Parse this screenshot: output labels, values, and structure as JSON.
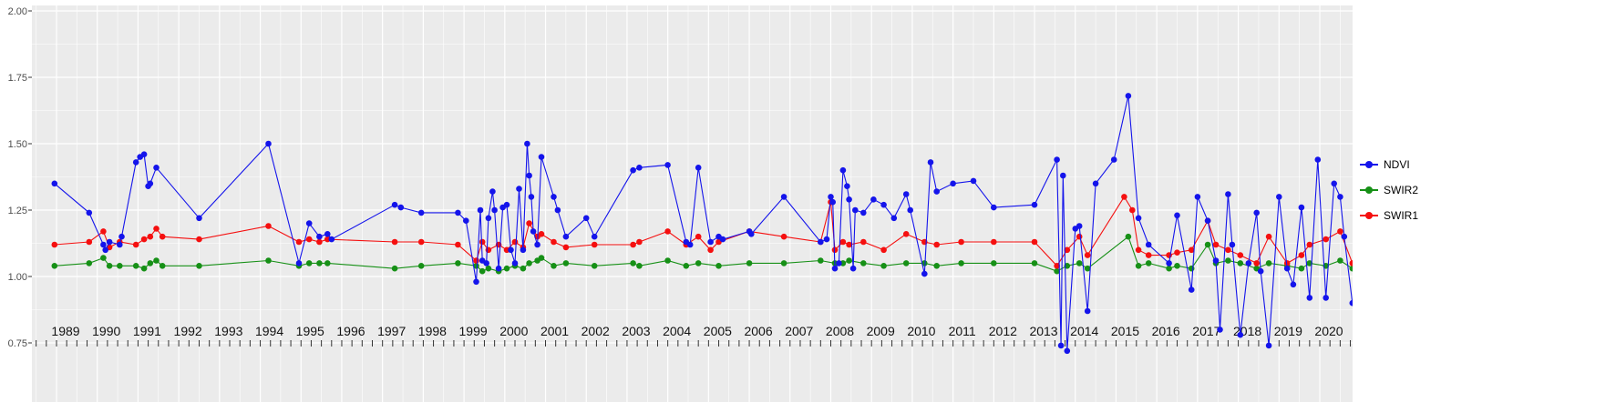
{
  "chart_data": {
    "type": "line",
    "title": "",
    "xlabel": "",
    "ylabel": "",
    "xlim": [
      1988.4,
      2020.95
    ],
    "ylim": [
      0.75,
      2.0
    ],
    "y_ticks": [
      0.75,
      1.0,
      1.25,
      1.5,
      1.75,
      2.0
    ],
    "y_tick_labels": [
      "0.75",
      "1.00",
      "1.25",
      "1.50",
      "1.75",
      "2.00"
    ],
    "x_ticks": [
      1989,
      1990,
      1991,
      1992,
      1993,
      1994,
      1995,
      1996,
      1997,
      1998,
      1999,
      2000,
      2001,
      2002,
      2003,
      2004,
      2005,
      2006,
      2007,
      2008,
      2009,
      2010,
      2011,
      2012,
      2013,
      2014,
      2015,
      2016,
      2017,
      2018,
      2019,
      2020
    ],
    "grid": "white major and minor gridlines on gray panel",
    "legend_position": "right",
    "series": [
      {
        "name": "SWIR2",
        "color": "#169016",
        "points": [
          [
            1988.95,
            1.04
          ],
          [
            1989.8,
            1.05
          ],
          [
            1990.15,
            1.07
          ],
          [
            1990.3,
            1.04
          ],
          [
            1990.55,
            1.04
          ],
          [
            1990.95,
            1.04
          ],
          [
            1991.15,
            1.03
          ],
          [
            1991.3,
            1.05
          ],
          [
            1991.45,
            1.06
          ],
          [
            1991.6,
            1.04
          ],
          [
            1992.5,
            1.04
          ],
          [
            1994.2,
            1.06
          ],
          [
            1994.95,
            1.04
          ],
          [
            1995.2,
            1.05
          ],
          [
            1995.45,
            1.05
          ],
          [
            1995.65,
            1.05
          ],
          [
            1997.3,
            1.03
          ],
          [
            1997.95,
            1.04
          ],
          [
            1998.85,
            1.05
          ],
          [
            1999.3,
            1.04
          ],
          [
            1999.45,
            1.02
          ],
          [
            1999.6,
            1.03
          ],
          [
            1999.85,
            1.02
          ],
          [
            2000.05,
            1.03
          ],
          [
            2000.25,
            1.04
          ],
          [
            2000.45,
            1.03
          ],
          [
            2000.6,
            1.05
          ],
          [
            2000.8,
            1.06
          ],
          [
            2000.9,
            1.07
          ],
          [
            2001.2,
            1.04
          ],
          [
            2001.5,
            1.05
          ],
          [
            2002.2,
            1.04
          ],
          [
            2003.15,
            1.05
          ],
          [
            2003.3,
            1.04
          ],
          [
            2004.0,
            1.06
          ],
          [
            2004.45,
            1.04
          ],
          [
            2004.75,
            1.05
          ],
          [
            2005.25,
            1.04
          ],
          [
            2006.0,
            1.05
          ],
          [
            2006.85,
            1.05
          ],
          [
            2007.75,
            1.06
          ],
          [
            2008.1,
            1.05
          ],
          [
            2008.3,
            1.05
          ],
          [
            2008.45,
            1.06
          ],
          [
            2008.8,
            1.05
          ],
          [
            2009.3,
            1.04
          ],
          [
            2009.85,
            1.05
          ],
          [
            2010.3,
            1.05
          ],
          [
            2010.6,
            1.04
          ],
          [
            2011.2,
            1.05
          ],
          [
            2012.0,
            1.05
          ],
          [
            2013.0,
            1.05
          ],
          [
            2013.55,
            1.02
          ],
          [
            2013.8,
            1.04
          ],
          [
            2014.1,
            1.05
          ],
          [
            2014.3,
            1.03
          ],
          [
            2015.3,
            1.15
          ],
          [
            2015.55,
            1.04
          ],
          [
            2015.8,
            1.05
          ],
          [
            2016.3,
            1.03
          ],
          [
            2016.5,
            1.04
          ],
          [
            2016.85,
            1.03
          ],
          [
            2017.25,
            1.12
          ],
          [
            2017.45,
            1.05
          ],
          [
            2017.75,
            1.06
          ],
          [
            2018.05,
            1.05
          ],
          [
            2018.45,
            1.03
          ],
          [
            2018.75,
            1.05
          ],
          [
            2019.2,
            1.04
          ],
          [
            2019.55,
            1.03
          ],
          [
            2019.75,
            1.05
          ],
          [
            2020.15,
            1.04
          ],
          [
            2020.5,
            1.06
          ],
          [
            2020.8,
            1.03
          ]
        ]
      },
      {
        "name": "SWIR1",
        "color": "#F50F0F",
        "points": [
          [
            1988.95,
            1.12
          ],
          [
            1989.8,
            1.13
          ],
          [
            1990.15,
            1.17
          ],
          [
            1990.3,
            1.11
          ],
          [
            1990.55,
            1.13
          ],
          [
            1990.95,
            1.12
          ],
          [
            1991.15,
            1.14
          ],
          [
            1991.3,
            1.15
          ],
          [
            1991.45,
            1.18
          ],
          [
            1991.6,
            1.15
          ],
          [
            1992.5,
            1.14
          ],
          [
            1994.2,
            1.19
          ],
          [
            1994.95,
            1.13
          ],
          [
            1995.2,
            1.14
          ],
          [
            1995.45,
            1.13
          ],
          [
            1995.65,
            1.14
          ],
          [
            1997.3,
            1.13
          ],
          [
            1997.95,
            1.13
          ],
          [
            1998.85,
            1.12
          ],
          [
            1999.3,
            1.06
          ],
          [
            1999.45,
            1.13
          ],
          [
            1999.6,
            1.1
          ],
          [
            1999.85,
            1.12
          ],
          [
            2000.05,
            1.1
          ],
          [
            2000.25,
            1.13
          ],
          [
            2000.45,
            1.11
          ],
          [
            2000.6,
            1.2
          ],
          [
            2000.8,
            1.15
          ],
          [
            2000.9,
            1.16
          ],
          [
            2001.2,
            1.13
          ],
          [
            2001.5,
            1.11
          ],
          [
            2002.2,
            1.12
          ],
          [
            2003.15,
            1.12
          ],
          [
            2003.3,
            1.13
          ],
          [
            2004.0,
            1.17
          ],
          [
            2004.45,
            1.12
          ],
          [
            2004.75,
            1.15
          ],
          [
            2005.05,
            1.1
          ],
          [
            2005.25,
            1.13
          ],
          [
            2006.0,
            1.17
          ],
          [
            2006.85,
            1.15
          ],
          [
            2007.75,
            1.13
          ],
          [
            2008.0,
            1.28
          ],
          [
            2008.1,
            1.1
          ],
          [
            2008.3,
            1.13
          ],
          [
            2008.45,
            1.12
          ],
          [
            2008.8,
            1.13
          ],
          [
            2009.3,
            1.1
          ],
          [
            2009.85,
            1.16
          ],
          [
            2010.3,
            1.13
          ],
          [
            2010.6,
            1.12
          ],
          [
            2011.2,
            1.13
          ],
          [
            2012.0,
            1.13
          ],
          [
            2013.0,
            1.13
          ],
          [
            2013.55,
            1.04
          ],
          [
            2013.8,
            1.1
          ],
          [
            2014.1,
            1.15
          ],
          [
            2014.3,
            1.08
          ],
          [
            2015.2,
            1.3
          ],
          [
            2015.4,
            1.25
          ],
          [
            2015.55,
            1.1
          ],
          [
            2015.8,
            1.08
          ],
          [
            2016.3,
            1.08
          ],
          [
            2016.5,
            1.09
          ],
          [
            2016.85,
            1.1
          ],
          [
            2017.25,
            1.21
          ],
          [
            2017.45,
            1.12
          ],
          [
            2017.75,
            1.1
          ],
          [
            2018.05,
            1.08
          ],
          [
            2018.45,
            1.05
          ],
          [
            2018.75,
            1.15
          ],
          [
            2019.2,
            1.05
          ],
          [
            2019.55,
            1.08
          ],
          [
            2019.75,
            1.12
          ],
          [
            2020.15,
            1.14
          ],
          [
            2020.5,
            1.17
          ],
          [
            2020.8,
            1.05
          ]
        ]
      },
      {
        "name": "NDVI",
        "color": "#1414EB",
        "points": [
          [
            1988.95,
            1.35
          ],
          [
            1989.8,
            1.24
          ],
          [
            1990.15,
            1.12
          ],
          [
            1990.2,
            1.1
          ],
          [
            1990.3,
            1.13
          ],
          [
            1990.55,
            1.12
          ],
          [
            1990.6,
            1.15
          ],
          [
            1990.95,
            1.43
          ],
          [
            1991.05,
            1.45
          ],
          [
            1991.15,
            1.46
          ],
          [
            1991.25,
            1.34
          ],
          [
            1991.3,
            1.35
          ],
          [
            1991.45,
            1.41
          ],
          [
            1992.5,
            1.22
          ],
          [
            1994.2,
            1.5
          ],
          [
            1994.95,
            1.05
          ],
          [
            1995.2,
            1.2
          ],
          [
            1995.45,
            1.15
          ],
          [
            1995.65,
            1.16
          ],
          [
            1995.75,
            1.14
          ],
          [
            1997.3,
            1.27
          ],
          [
            1997.45,
            1.26
          ],
          [
            1997.95,
            1.24
          ],
          [
            1998.85,
            1.24
          ],
          [
            1999.05,
            1.21
          ],
          [
            1999.3,
            0.98
          ],
          [
            1999.4,
            1.25
          ],
          [
            1999.45,
            1.06
          ],
          [
            1999.55,
            1.05
          ],
          [
            1999.6,
            1.22
          ],
          [
            1999.7,
            1.32
          ],
          [
            1999.75,
            1.25
          ],
          [
            1999.85,
            1.03
          ],
          [
            1999.95,
            1.26
          ],
          [
            2000.05,
            1.27
          ],
          [
            2000.15,
            1.1
          ],
          [
            2000.25,
            1.05
          ],
          [
            2000.35,
            1.33
          ],
          [
            2000.45,
            1.1
          ],
          [
            2000.55,
            1.5
          ],
          [
            2000.6,
            1.38
          ],
          [
            2000.65,
            1.3
          ],
          [
            2000.7,
            1.17
          ],
          [
            2000.8,
            1.12
          ],
          [
            2000.9,
            1.45
          ],
          [
            2001.2,
            1.3
          ],
          [
            2001.3,
            1.25
          ],
          [
            2001.5,
            1.15
          ],
          [
            2002.0,
            1.22
          ],
          [
            2002.2,
            1.15
          ],
          [
            2003.15,
            1.4
          ],
          [
            2003.3,
            1.41
          ],
          [
            2004.0,
            1.42
          ],
          [
            2004.45,
            1.13
          ],
          [
            2004.55,
            1.12
          ],
          [
            2004.75,
            1.41
          ],
          [
            2005.05,
            1.13
          ],
          [
            2005.25,
            1.15
          ],
          [
            2005.35,
            1.14
          ],
          [
            2006.0,
            1.17
          ],
          [
            2006.05,
            1.16
          ],
          [
            2006.85,
            1.3
          ],
          [
            2007.75,
            1.13
          ],
          [
            2007.9,
            1.14
          ],
          [
            2008.0,
            1.3
          ],
          [
            2008.05,
            1.28
          ],
          [
            2008.1,
            1.03
          ],
          [
            2008.2,
            1.05
          ],
          [
            2008.3,
            1.4
          ],
          [
            2008.4,
            1.34
          ],
          [
            2008.45,
            1.29
          ],
          [
            2008.55,
            1.03
          ],
          [
            2008.6,
            1.25
          ],
          [
            2008.8,
            1.24
          ],
          [
            2009.05,
            1.29
          ],
          [
            2009.3,
            1.27
          ],
          [
            2009.55,
            1.22
          ],
          [
            2009.85,
            1.31
          ],
          [
            2009.95,
            1.25
          ],
          [
            2010.3,
            1.01
          ],
          [
            2010.45,
            1.43
          ],
          [
            2010.6,
            1.32
          ],
          [
            2011.0,
            1.35
          ],
          [
            2011.5,
            1.36
          ],
          [
            2012.0,
            1.26
          ],
          [
            2013.0,
            1.27
          ],
          [
            2013.55,
            1.44
          ],
          [
            2013.65,
            0.74
          ],
          [
            2013.7,
            1.38
          ],
          [
            2013.8,
            0.72
          ],
          [
            2014.0,
            1.18
          ],
          [
            2014.1,
            1.19
          ],
          [
            2014.3,
            0.87
          ],
          [
            2014.5,
            1.35
          ],
          [
            2014.95,
            1.44
          ],
          [
            2015.3,
            1.68
          ],
          [
            2015.55,
            1.22
          ],
          [
            2015.8,
            1.12
          ],
          [
            2016.3,
            1.05
          ],
          [
            2016.5,
            1.23
          ],
          [
            2016.85,
            0.95
          ],
          [
            2017.0,
            1.3
          ],
          [
            2017.25,
            1.21
          ],
          [
            2017.45,
            1.06
          ],
          [
            2017.55,
            0.8
          ],
          [
            2017.75,
            1.31
          ],
          [
            2017.85,
            1.12
          ],
          [
            2018.05,
            0.78
          ],
          [
            2018.25,
            1.05
          ],
          [
            2018.45,
            1.24
          ],
          [
            2018.55,
            1.02
          ],
          [
            2018.75,
            0.74
          ],
          [
            2019.0,
            1.3
          ],
          [
            2019.2,
            1.03
          ],
          [
            2019.35,
            0.97
          ],
          [
            2019.55,
            1.26
          ],
          [
            2019.75,
            0.92
          ],
          [
            2019.95,
            1.44
          ],
          [
            2020.15,
            0.92
          ],
          [
            2020.35,
            1.35
          ],
          [
            2020.5,
            1.3
          ],
          [
            2020.6,
            1.15
          ],
          [
            2020.8,
            0.9
          ]
        ]
      }
    ]
  },
  "legend": {
    "order": [
      "NDVI",
      "SWIR2",
      "SWIR1"
    ]
  },
  "colors": {
    "panel_bg": "#EBEBEB",
    "grid_major": "#FFFFFF",
    "grid_minor": "#F7F7F7",
    "axis_text_y": "#4D4D4D",
    "axis_text_x": "#111111",
    "tick_mark": "#333333",
    "figure_bg": "#FFFFFF"
  }
}
